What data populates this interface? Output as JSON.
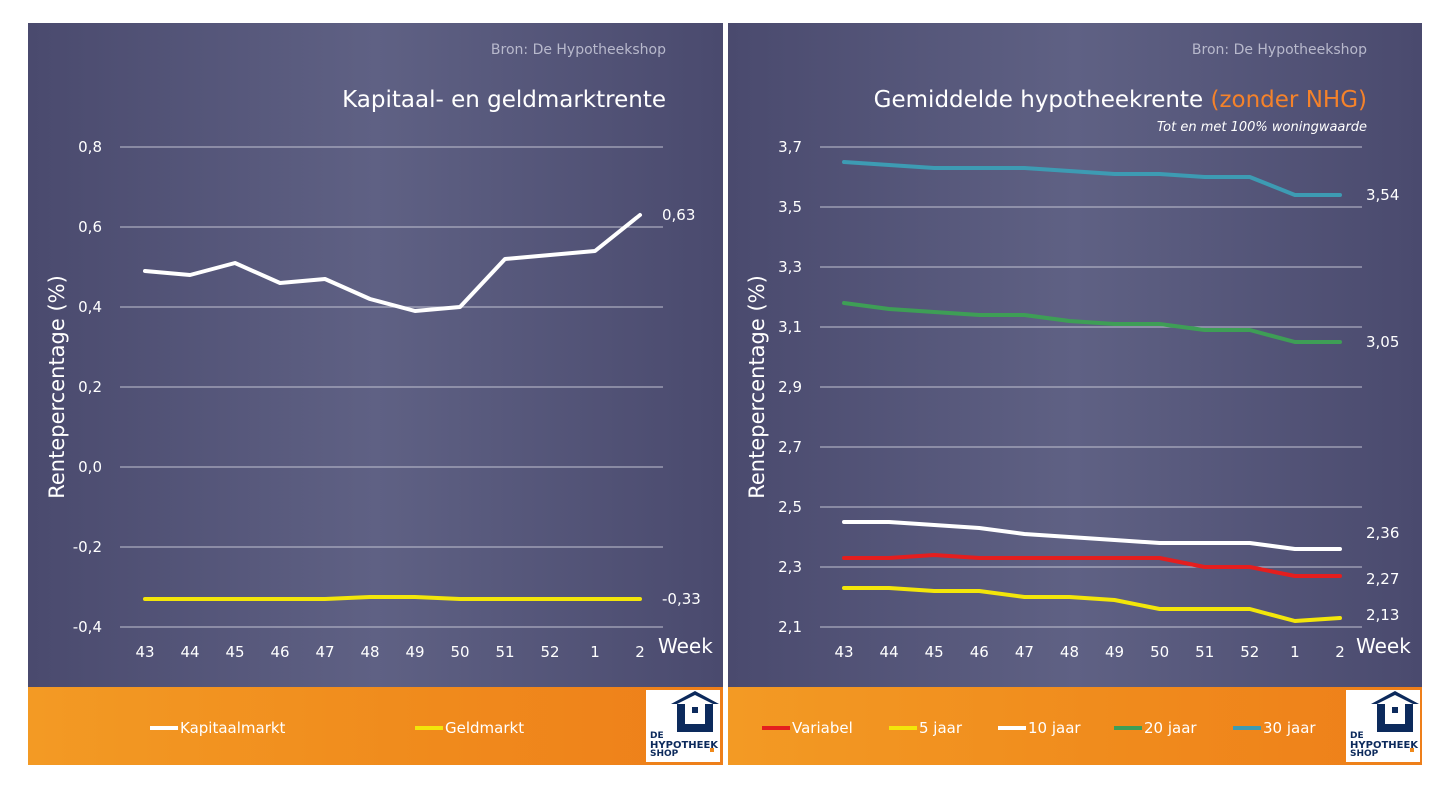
{
  "chart_data": [
    {
      "type": "line",
      "title": "Kapitaal- en geldmarktrente",
      "source": "Bron: De Hypotheekshop",
      "ylabel": "Rentepercentage (%)",
      "xlabel": "Week",
      "categories": [
        "43",
        "44",
        "45",
        "46",
        "47",
        "48",
        "49",
        "50",
        "51",
        "52",
        "1",
        "2"
      ],
      "ylim": [
        -0.4,
        0.8
      ],
      "yticks": [
        "0,8",
        "0,6",
        "0,4",
        "0,2",
        "0,0",
        "-0,2",
        "-0,4"
      ],
      "yticks_values": [
        0.8,
        0.6,
        0.4,
        0.2,
        0.0,
        -0.2,
        -0.4
      ],
      "grid": true,
      "series": [
        {
          "name": "Kapitaalmarkt",
          "color": "#ffffff",
          "end_label": "0,63",
          "values": [
            0.49,
            0.48,
            0.51,
            0.46,
            0.47,
            0.42,
            0.39,
            0.4,
            0.52,
            0.53,
            0.54,
            0.63
          ]
        },
        {
          "name": "Geldmarkt",
          "color": "#f3e60a",
          "end_label": "-0,33",
          "values": [
            -0.33,
            -0.33,
            -0.33,
            -0.33,
            -0.33,
            -0.325,
            -0.325,
            -0.33,
            -0.33,
            -0.33,
            -0.33,
            -0.33
          ]
        }
      ],
      "legend_placement": "bottom"
    },
    {
      "type": "line",
      "title": "Gemiddelde hypotheekrente",
      "title_accent": "(zonder NHG)",
      "subtitle": "Tot en met 100% woningwaarde",
      "source": "Bron: De Hypotheekshop",
      "ylabel": "Rentepercentage (%)",
      "xlabel": "Week",
      "categories": [
        "43",
        "44",
        "45",
        "46",
        "47",
        "48",
        "49",
        "50",
        "51",
        "52",
        "1",
        "2"
      ],
      "ylim": [
        2.1,
        3.7
      ],
      "yticks": [
        "3,7",
        "3,5",
        "3,3",
        "3,1",
        "2,9",
        "2,7",
        "2,5",
        "2,3",
        "2,1"
      ],
      "yticks_values": [
        3.7,
        3.5,
        3.3,
        3.1,
        2.9,
        2.7,
        2.5,
        2.3,
        2.1
      ],
      "grid": true,
      "series": [
        {
          "name": "Variabel",
          "color": "#e41e1e",
          "end_label": "2,27",
          "values": [
            2.33,
            2.33,
            2.34,
            2.33,
            2.33,
            2.33,
            2.33,
            2.33,
            2.3,
            2.3,
            2.27,
            2.27
          ]
        },
        {
          "name": "5 jaar",
          "color": "#f3e60a",
          "end_label": "2,13",
          "values": [
            2.23,
            2.23,
            2.22,
            2.22,
            2.2,
            2.2,
            2.19,
            2.16,
            2.16,
            2.16,
            2.12,
            2.13
          ]
        },
        {
          "name": "10 jaar",
          "color": "#ffffff",
          "end_label": "2,36",
          "values": [
            2.45,
            2.45,
            2.44,
            2.43,
            2.41,
            2.4,
            2.39,
            2.38,
            2.38,
            2.38,
            2.36,
            2.36
          ]
        },
        {
          "name": "20 jaar",
          "color": "#3e9e56",
          "end_label": "3,05",
          "values": [
            3.18,
            3.16,
            3.15,
            3.14,
            3.14,
            3.12,
            3.11,
            3.11,
            3.09,
            3.09,
            3.05,
            3.05
          ]
        },
        {
          "name": "30 jaar",
          "color": "#3d9bb3",
          "end_label": "3,54",
          "values": [
            3.65,
            3.64,
            3.63,
            3.63,
            3.63,
            3.62,
            3.61,
            3.61,
            3.6,
            3.6,
            3.54,
            3.54
          ]
        }
      ],
      "legend_placement": "bottom"
    }
  ],
  "logo": {
    "line1": "DE",
    "line2": "HYPOTHEEK",
    "line3": "SHOP"
  },
  "colors": {
    "panel_bg": "#55577a",
    "legend_bg": "#f39224",
    "grid": "#c9cad8",
    "logo_blue": "#0c2a5c"
  }
}
